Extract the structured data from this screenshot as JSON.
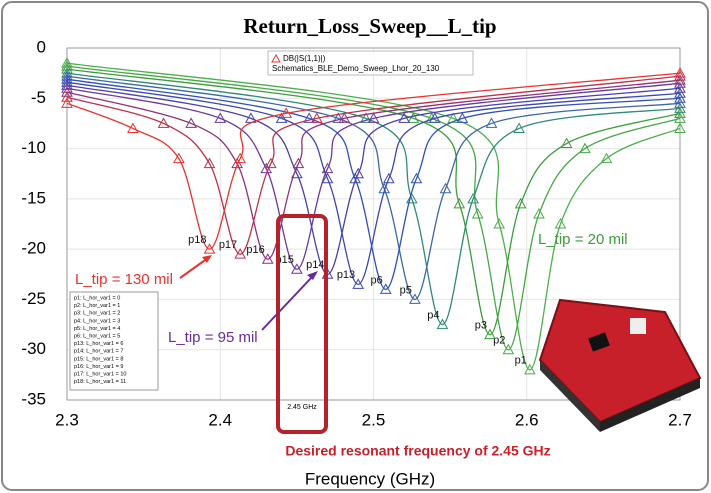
{
  "chart_data": {
    "type": "line",
    "title": "Return_Loss_Sweep__L_tip",
    "x_label": "Frequency (GHz)",
    "xlim": [
      2.3,
      2.7
    ],
    "xticks": [
      2.3,
      2.4,
      2.5,
      2.6,
      2.7
    ],
    "ylim": [
      -35,
      0
    ],
    "yticks": [
      0,
      -5,
      -10,
      -15,
      -20,
      -25,
      -30,
      -35
    ],
    "grid": true,
    "legend_title": "DB(|S(1,1)|)",
    "legend_subtitle": "Schematics_BLE_Demo_Sweep_Lhor_20_130",
    "notes": [
      "p1: L_hor_var1 = 0",
      "p2: L_hor_var1 = 1",
      "p3: L_hor_var1 = 2",
      "p4: L_hor_var1 = 3",
      "p5: L_hor_var1 = 4",
      "p6: L_hor_var1 = 5",
      "p13: L_hor_var1 = 6",
      "p14: L_hor_var1 = 7",
      "p15: L_hor_var1 = 8",
      "p16: L_hor_var1 = 9",
      "p17: L_hor_var1 = 10",
      "p18: L_hor_var1 = 11"
    ],
    "annotations": {
      "red": "L_tip = 130 mil",
      "purple": "L_tip = 95 mil",
      "green": "L_tip = 20 mil",
      "marker": "2.45 GHz",
      "caption": "Desired resonant frequency of 2.45 GHz"
    },
    "series": [
      {
        "name": "p1",
        "color": "#4caf4c",
        "x": [
          2.3,
          2.552,
          2.582,
          2.602,
          2.622,
          2.652,
          2.7
        ],
        "values": [
          -1.5,
          -7,
          -17.5,
          -32,
          -17.5,
          -11,
          -8
        ]
      },
      {
        "name": "p2",
        "color": "#45a845",
        "x": [
          2.3,
          2.538,
          2.568,
          2.588,
          2.608,
          2.638,
          2.7
        ],
        "values": [
          -1.8,
          -7,
          -16.5,
          -30,
          -16.5,
          -10,
          -7
        ]
      },
      {
        "name": "p3",
        "color": "#3c9c3c",
        "x": [
          2.3,
          2.526,
          2.556,
          2.576,
          2.596,
          2.626,
          2.7
        ],
        "values": [
          -2.1,
          -7,
          -15.5,
          -28.5,
          -15.5,
          -9.5,
          -6.5
        ]
      },
      {
        "name": "p4",
        "color": "#2f8a78",
        "x": [
          2.3,
          2.495,
          2.525,
          2.545,
          2.565,
          2.595,
          2.7
        ],
        "values": [
          -2.5,
          -7,
          -15,
          -27.5,
          -15,
          -8,
          -6
        ]
      },
      {
        "name": "p5",
        "color": "#3a66a8",
        "x": [
          2.3,
          2.477,
          2.507,
          2.527,
          2.547,
          2.577,
          2.7
        ],
        "values": [
          -2.8,
          -7,
          -14,
          -25,
          -14,
          -7.5,
          -5.5
        ]
      },
      {
        "name": "p6",
        "color": "#3050b8",
        "x": [
          2.3,
          2.458,
          2.488,
          2.508,
          2.528,
          2.558,
          2.7
        ],
        "values": [
          -3.1,
          -7,
          -13,
          -24,
          -13,
          -7,
          -5
        ]
      },
      {
        "name": "p13",
        "color": "#3a48b0",
        "x": [
          2.3,
          2.44,
          2.47,
          2.49,
          2.51,
          2.54,
          2.7
        ],
        "values": [
          -3.4,
          -7,
          -13,
          -23.5,
          -13,
          -7,
          -4.5
        ]
      },
      {
        "name": "p14",
        "color": "#4a3fa8",
        "x": [
          2.3,
          2.42,
          2.45,
          2.47,
          2.49,
          2.52,
          2.7
        ],
        "values": [
          -3.7,
          -7,
          -12.5,
          -22.5,
          -12.5,
          -7,
          -4
        ]
      },
      {
        "name": "p15",
        "color": "#6a3a9c",
        "x": [
          2.3,
          2.4,
          2.43,
          2.45,
          2.47,
          2.5,
          2.7
        ],
        "values": [
          -4,
          -7,
          -12,
          -22,
          -12,
          -7,
          -3.5
        ]
      },
      {
        "name": "p16",
        "color": "#8e3278",
        "x": [
          2.3,
          2.381,
          2.411,
          2.431,
          2.451,
          2.481,
          2.7
        ],
        "values": [
          -4.4,
          -7.5,
          -11.5,
          -21,
          -11.5,
          -7,
          -3.2
        ]
      },
      {
        "name": "p17",
        "color": "#c0304a",
        "x": [
          2.3,
          2.363,
          2.393,
          2.413,
          2.433,
          2.463,
          2.7
        ],
        "values": [
          -4.9,
          -7.5,
          -11.5,
          -20.5,
          -11.5,
          -7,
          -2.8
        ]
      },
      {
        "name": "p18",
        "color": "#e8332e",
        "x": [
          2.3,
          2.343,
          2.373,
          2.393,
          2.413,
          2.443,
          2.7
        ],
        "values": [
          -5.5,
          -8,
          -11,
          -20,
          -11,
          -6.5,
          -2.5
        ]
      }
    ]
  }
}
